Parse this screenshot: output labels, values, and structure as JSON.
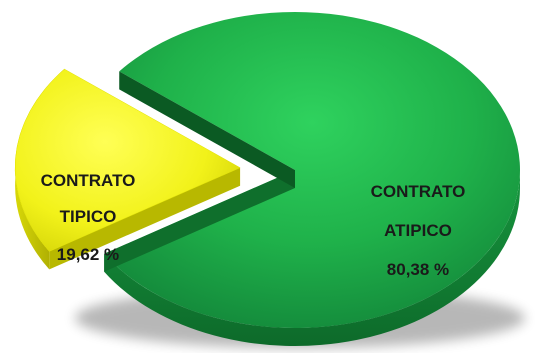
{
  "chart_data": {
    "type": "pie",
    "title": "",
    "three_d": true,
    "exploded_slice": "CONTRATO TIPICO",
    "slices": [
      {
        "label_line1": "CONTRATO",
        "label_line2": "ATIPICO",
        "value": 80.38,
        "value_label": "80,38 %",
        "color": "#1fb14a"
      },
      {
        "label_line1": "CONTRATO",
        "label_line2": "TIPICO",
        "value": 19.62,
        "value_label": "19,62 %",
        "color": "#f2f21a"
      }
    ]
  }
}
